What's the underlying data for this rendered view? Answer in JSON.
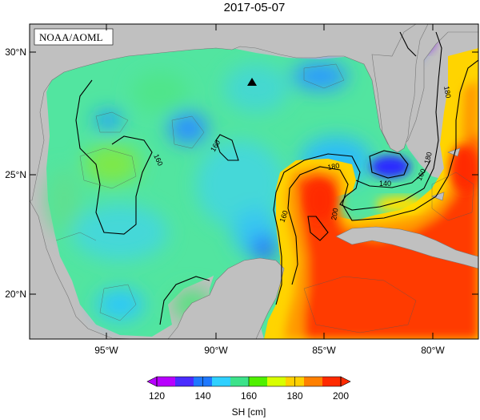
{
  "title": "2017-05-07",
  "credit": "NOAA/AOML",
  "lon_labels": [
    "95°W",
    "90°W",
    "85°W",
    "80°W"
  ],
  "lat_labels": [
    "30°N",
    "25°N",
    "20°N"
  ],
  "colorbar": {
    "ticks": [
      "120",
      "140",
      "160",
      "180",
      "200"
    ],
    "label": "SH [cm]",
    "colors": [
      "#b800ff",
      "#4a2cff",
      "#1e78ff",
      "#2fd0ff",
      "#3ce28a",
      "#4ff000",
      "#d8ff00",
      "#ffd000",
      "#ff8000",
      "#ff2a00"
    ]
  },
  "contour_labels": [
    "160",
    "160",
    "160",
    "180",
    "180",
    "200",
    "140",
    "160",
    "180"
  ],
  "land_color": "#c0c0c0",
  "marker": "triangle-marker"
}
